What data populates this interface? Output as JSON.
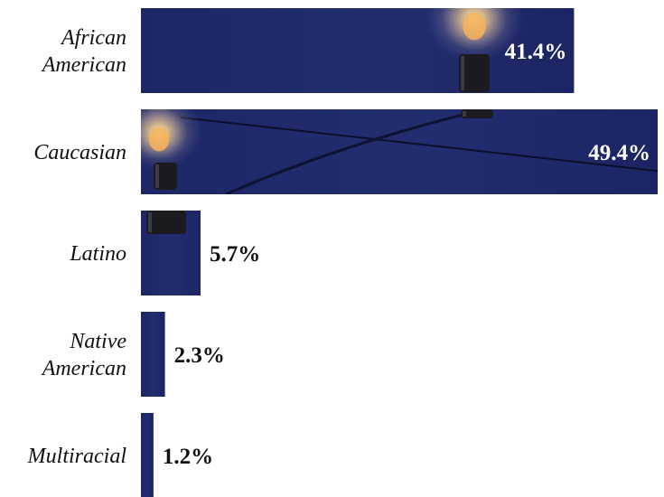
{
  "chart_data": {
    "type": "bar",
    "orientation": "horizontal",
    "categories": [
      [
        "African",
        "American"
      ],
      [
        "Caucasian"
      ],
      [
        "Latino"
      ],
      [
        "Native",
        "American"
      ],
      [
        "Multiracial"
      ]
    ],
    "values": [
      41.4,
      49.4,
      5.7,
      2.3,
      1.2
    ],
    "value_labels": [
      "41.4%",
      "49.4%",
      "5.7%",
      "2.3%",
      "1.2%"
    ],
    "title": "",
    "xlabel": "",
    "ylabel": "",
    "xlim": [
      0,
      49.4
    ],
    "grid": false,
    "legend": "none",
    "bar_color": "#1f2a6b",
    "bar_texture": "photo of string lights on a night-blue sky",
    "label_color_inside": "#ffffff",
    "label_color_outside": "#111111"
  }
}
